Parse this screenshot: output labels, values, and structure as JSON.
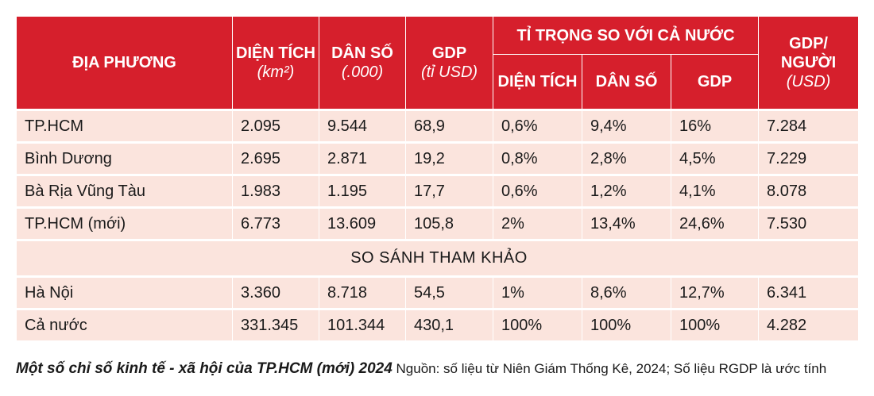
{
  "table": {
    "headers": {
      "region": "ĐỊA PHƯƠNG",
      "area": "DIỆN TÍCH",
      "area_unit": "(km²)",
      "population": "DÂN SỐ",
      "population_unit": "(.000)",
      "gdp": "GDP",
      "gdp_unit": "(tỉ USD)",
      "share_group": "TỈ TRỌNG SO VỚI CẢ NƯỚC",
      "share_area": "DIỆN TÍCH",
      "share_population": "DÂN SỐ",
      "share_gdp": "GDP",
      "gdp_per_capita": "GDP/ NGƯỜI",
      "gdp_per_capita_unit": "(USD)"
    },
    "rows": [
      {
        "name": "TP.HCM",
        "area": "2.095",
        "population": "9.544",
        "gdp": "68,9",
        "share_area": "0,6%",
        "share_population": "9,4%",
        "share_gdp": "16%",
        "gdp_per_capita": "7.284"
      },
      {
        "name": "Bình Dương",
        "area": "2.695",
        "population": "2.871",
        "gdp": "19,2",
        "share_area": "0,8%",
        "share_population": "2,8%",
        "share_gdp": "4,5%",
        "gdp_per_capita": "7.229"
      },
      {
        "name": "Bà Rịa Vũng Tàu",
        "area": "1.983",
        "population": "1.195",
        "gdp": "17,7",
        "share_area": "0,6%",
        "share_population": "1,2%",
        "share_gdp": "4,1%",
        "gdp_per_capita": "8.078"
      },
      {
        "name": "TP.HCM (mới)",
        "area": "6.773",
        "population": "13.609",
        "gdp": "105,8",
        "share_area": "2%",
        "share_population": "13,4%",
        "share_gdp": "24,6%",
        "gdp_per_capita": "7.530"
      }
    ],
    "section_label": "SO SÁNH THAM KHẢO",
    "reference_rows": [
      {
        "name": "Hà Nội",
        "area": "3.360",
        "population": "8.718",
        "gdp": "54,5",
        "share_area": "1%",
        "share_population": "8,6%",
        "share_gdp": "12,7%",
        "gdp_per_capita": "6.341"
      },
      {
        "name": "Cả nước",
        "area": "331.345",
        "population": "101.344",
        "gdp": "430,1",
        "share_area": "100%",
        "share_population": "100%",
        "share_gdp": "100%",
        "gdp_per_capita": "4.282"
      }
    ]
  },
  "caption": {
    "title": "Một số chỉ số kinh tế - xã hội của TP.HCM (mới) 2024",
    "source": "Nguồn: số liệu từ Niên Giám Thống Kê, 2024; Số liệu RGDP là ước tính"
  },
  "colors": {
    "header_bg": "#d61f2c",
    "row_bg": "#fbe4dd"
  }
}
